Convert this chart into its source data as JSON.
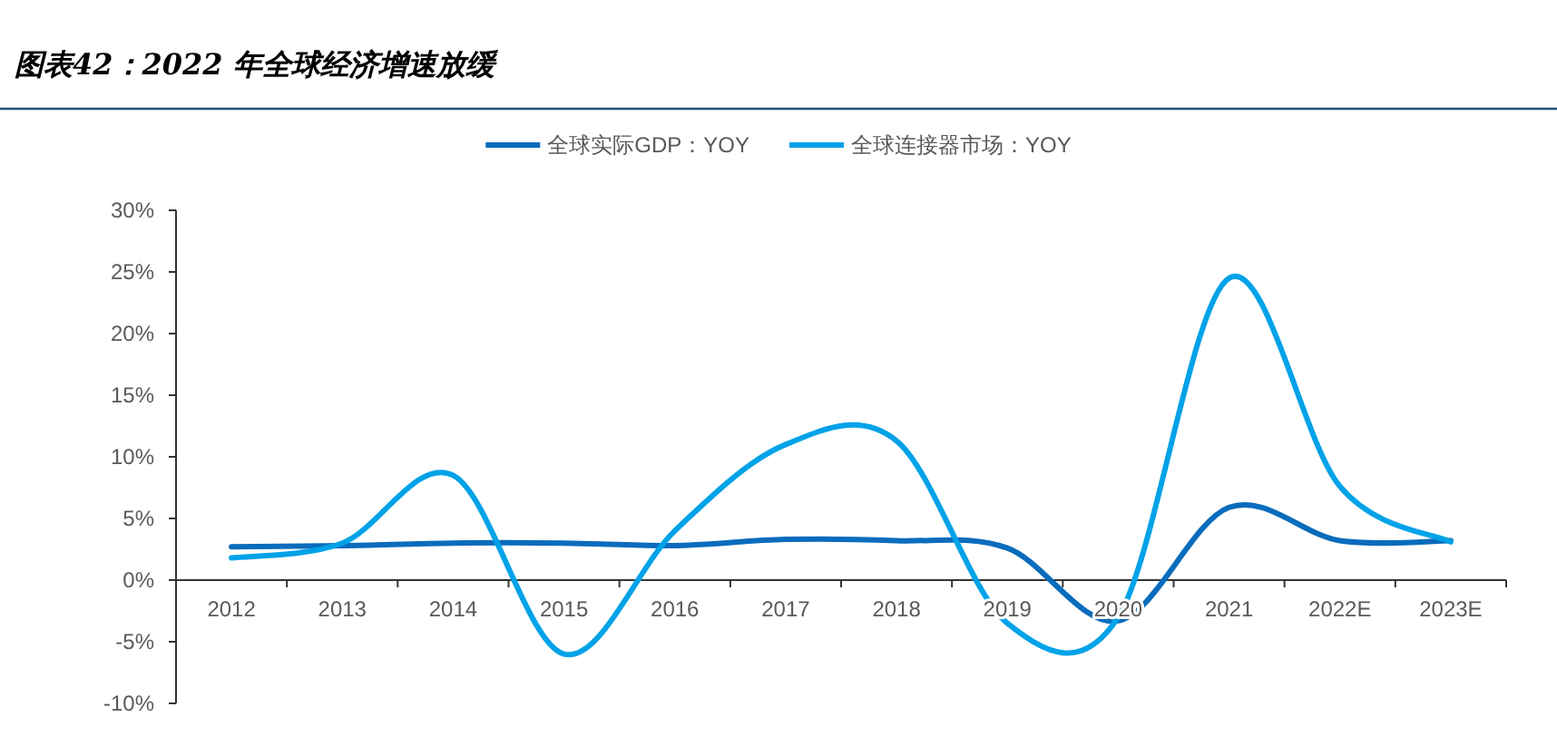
{
  "chart_data": {
    "type": "line",
    "title": "图表42：2022 年全球经济增速放缓",
    "categories": [
      "2012",
      "2013",
      "2014",
      "2015",
      "2016",
      "2017",
      "2018",
      "2019",
      "2020",
      "2021",
      "2022E",
      "2023E"
    ],
    "series": [
      {
        "name": "全球实际GDP：YOY",
        "color": "#0a6cbc",
        "values": [
          2.7,
          2.8,
          3.0,
          3.0,
          2.8,
          3.3,
          3.2,
          2.6,
          -3.3,
          5.9,
          3.2,
          3.2
        ]
      },
      {
        "name": "全球连接器市场：YOY",
        "color": "#00a2e8",
        "values": [
          1.8,
          3.0,
          8.5,
          -6.0,
          4.0,
          11.0,
          11.3,
          -3.5,
          -3.0,
          24.5,
          7.6,
          3.1
        ]
      }
    ],
    "ylim": [
      -10,
      30
    ],
    "yticks": [
      {
        "value": -10,
        "label": "-10%"
      },
      {
        "value": -5,
        "label": "-5%"
      },
      {
        "value": 0,
        "label": "0%"
      },
      {
        "value": 5,
        "label": "5%"
      },
      {
        "value": 10,
        "label": "10%"
      },
      {
        "value": 15,
        "label": "15%"
      },
      {
        "value": 20,
        "label": "20%"
      },
      {
        "value": 25,
        "label": "25%"
      },
      {
        "value": 30,
        "label": "30%"
      }
    ],
    "grid": false,
    "legend": "top",
    "marker": "none",
    "line_style": "solid"
  }
}
